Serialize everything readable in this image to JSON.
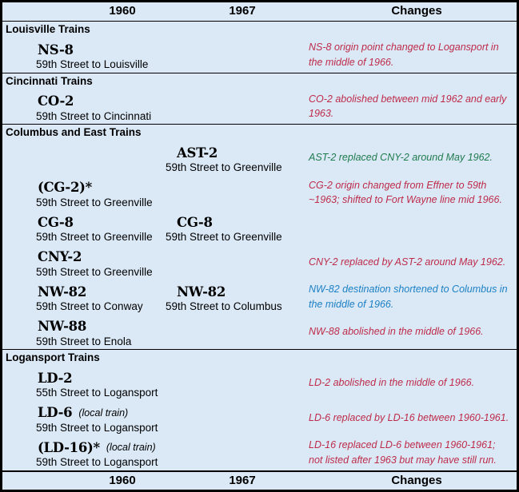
{
  "palette": {
    "background": "#dbe9f7",
    "grid_line": "#000000",
    "text": "#000000",
    "change_red": "#be2b49",
    "change_green": "#1f7b4d",
    "change_blue": "#1b80c4"
  },
  "header": {
    "y1960": "1960",
    "y1967": "1967",
    "changes": "Changes"
  },
  "footer": {
    "y1960": "1960",
    "y1967": "1967",
    "changes": "Changes"
  },
  "sections": [
    {
      "title": "Louisville Trains",
      "rows": [
        {
          "t1960": {
            "name": "NS-8",
            "route": "59th Street to Louisville"
          },
          "change": {
            "text": "NS-8 origin point changed to Logansport in the middle of 1966.",
            "color": "red"
          }
        }
      ]
    },
    {
      "title": "Cincinnati Trains",
      "rows": [
        {
          "t1960": {
            "name": "CO-2",
            "route": "59th Street to Cincinnati"
          },
          "change": {
            "text": "CO-2 abolished between mid 1962 and early 1963.",
            "color": "red"
          }
        }
      ]
    },
    {
      "title": "Columbus and East Trains",
      "rows": [
        {
          "t1967": {
            "name": "AST-2",
            "route": "59th Street to Greenville"
          },
          "change": {
            "text": "AST-2 replaced CNY-2 around May 1962.",
            "color": "green"
          }
        },
        {
          "t1960": {
            "name": "(CG-2)*",
            "route": "59th Street to Greenville"
          },
          "change": {
            "text": "CG-2 origin changed from Effner to 59th ~1963; shifted to Fort Wayne line mid 1966.",
            "color": "red"
          }
        },
        {
          "t1960": {
            "name": "CG-8",
            "route": "59th Street to Greenville"
          },
          "t1967": {
            "name": "CG-8",
            "route": "59th Street to Greenville"
          }
        },
        {
          "t1960": {
            "name": "CNY-2",
            "route": "59th Street to Greenville"
          },
          "change": {
            "text": "CNY-2 replaced by AST-2 around May 1962.",
            "color": "red"
          }
        },
        {
          "t1960": {
            "name": "NW-82",
            "route": "59th Street to Conway"
          },
          "t1967": {
            "name": "NW-82",
            "route": "59th Street to Columbus"
          },
          "change": {
            "text": "NW-82 destination shortened to Columbus in the middle of 1966.",
            "color": "blue"
          }
        },
        {
          "t1960": {
            "name": "NW-88",
            "route": "59th Street to Enola"
          },
          "change": {
            "text": "NW-88 abolished in the middle of 1966.",
            "color": "red"
          }
        }
      ]
    },
    {
      "title": "Logansport Trains",
      "rows": [
        {
          "t1960": {
            "name": "LD-2",
            "route": "55th Street to Logansport"
          },
          "change": {
            "text": "LD-2 abolished in the middle of 1966.",
            "color": "red"
          }
        },
        {
          "t1960": {
            "name": "LD-6",
            "note": "(local train)",
            "route": "59th Street to Logansport"
          },
          "change": {
            "text": "LD-6 replaced by LD-16 between 1960-1961.",
            "color": "red"
          }
        },
        {
          "t1960": {
            "name": "(LD-16)*",
            "note": "(local train)",
            "route": "59th Street to Logansport"
          },
          "change": {
            "text": "LD-16 replaced LD-6 between 1960-1961; not listed after 1963 but may have still run.",
            "color": "red"
          }
        }
      ]
    }
  ]
}
